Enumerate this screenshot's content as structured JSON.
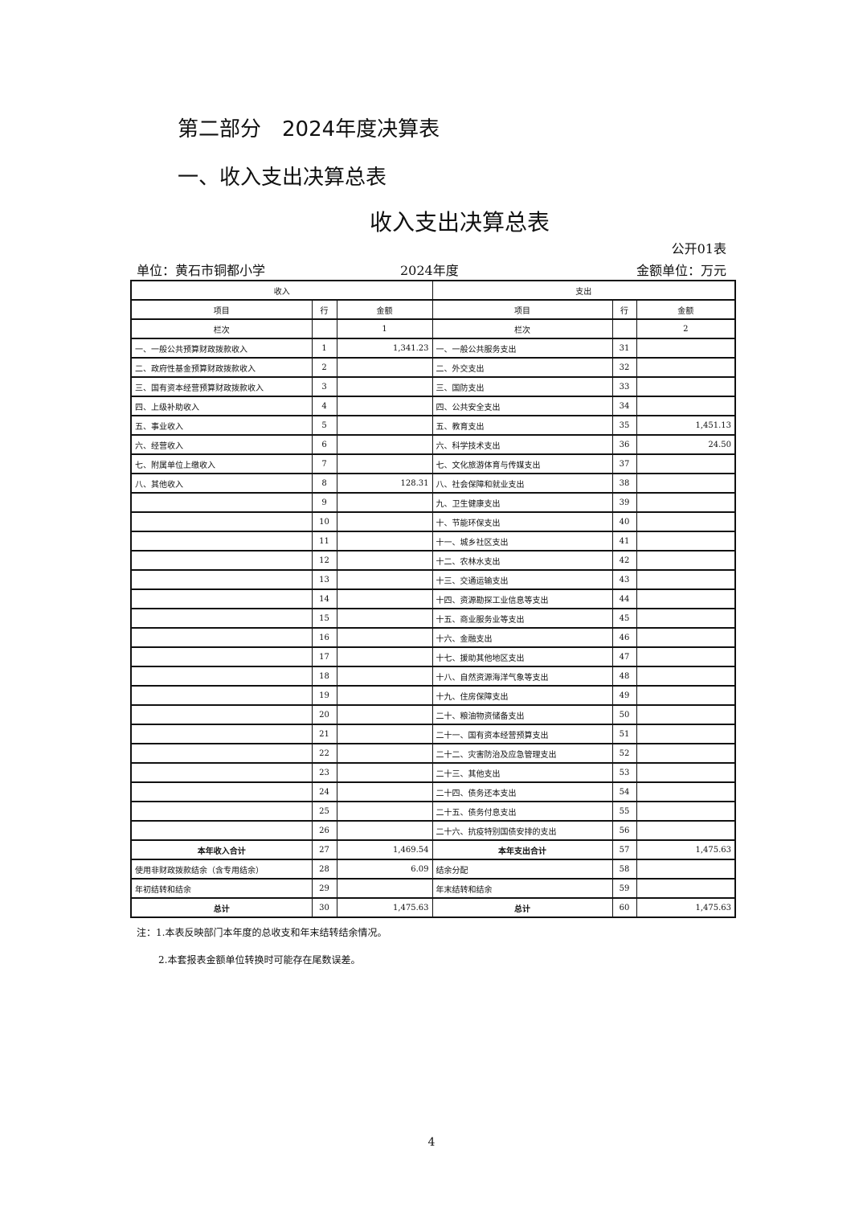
{
  "heading_part": "第二部分　2024年度决算表",
  "heading_section": "一、收入支出决算总表",
  "table_title": "收入支出决算总表",
  "form_no": "公开01表",
  "unit": "单位：黄石市铜都小学",
  "year": "2024年度",
  "money_unit": "金额单位：万元",
  "header": {
    "income": "收入",
    "expense": "支出",
    "item": "项目",
    "line": "行",
    "amount": "金额",
    "col_label": "栏次",
    "col_income": "1",
    "col_expense": "2"
  },
  "rows": [
    [
      "一、一般公共预算财政拨款收入",
      "1",
      "1,341.23",
      "一、一般公共服务支出",
      "31",
      ""
    ],
    [
      "二、政府性基金预算财政拨款收入",
      "2",
      "",
      "二、外交支出",
      "32",
      ""
    ],
    [
      "三、国有资本经营预算财政拨款收入",
      "3",
      "",
      "三、国防支出",
      "33",
      ""
    ],
    [
      "四、上级补助收入",
      "4",
      "",
      "四、公共安全支出",
      "34",
      ""
    ],
    [
      "五、事业收入",
      "5",
      "",
      "五、教育支出",
      "35",
      "1,451.13"
    ],
    [
      "六、经营收入",
      "6",
      "",
      "六、科学技术支出",
      "36",
      "24.50"
    ],
    [
      "七、附属单位上缴收入",
      "7",
      "",
      "七、文化旅游体育与传媒支出",
      "37",
      ""
    ],
    [
      "八、其他收入",
      "8",
      "128.31",
      "八、社会保障和就业支出",
      "38",
      ""
    ],
    [
      "",
      "9",
      "",
      "九、卫生健康支出",
      "39",
      ""
    ],
    [
      "",
      "10",
      "",
      "十、节能环保支出",
      "40",
      ""
    ],
    [
      "",
      "11",
      "",
      "十一、城乡社区支出",
      "41",
      ""
    ],
    [
      "",
      "12",
      "",
      "十二、农林水支出",
      "42",
      ""
    ],
    [
      "",
      "13",
      "",
      "十三、交通运输支出",
      "43",
      ""
    ],
    [
      "",
      "14",
      "",
      "十四、资源勘探工业信息等支出",
      "44",
      ""
    ],
    [
      "",
      "15",
      "",
      "十五、商业服务业等支出",
      "45",
      ""
    ],
    [
      "",
      "16",
      "",
      "十六、金融支出",
      "46",
      ""
    ],
    [
      "",
      "17",
      "",
      "十七、援助其他地区支出",
      "47",
      ""
    ],
    [
      "",
      "18",
      "",
      "十八、自然资源海洋气象等支出",
      "48",
      ""
    ],
    [
      "",
      "19",
      "",
      "十九、住房保障支出",
      "49",
      ""
    ],
    [
      "",
      "20",
      "",
      "二十、粮油物资储备支出",
      "50",
      ""
    ],
    [
      "",
      "21",
      "",
      "二十一、国有资本经营预算支出",
      "51",
      ""
    ],
    [
      "",
      "22",
      "",
      "二十二、灾害防治及应急管理支出",
      "52",
      ""
    ],
    [
      "",
      "23",
      "",
      "二十三、其他支出",
      "53",
      ""
    ],
    [
      "",
      "24",
      "",
      "二十四、债务还本支出",
      "54",
      ""
    ],
    [
      "",
      "25",
      "",
      "二十五、债务付息支出",
      "55",
      ""
    ],
    [
      "",
      "26",
      "",
      "二十六、抗疫特别国债安排的支出",
      "56",
      ""
    ],
    [
      "本年收入合计",
      "27",
      "1,469.54",
      "本年支出合计",
      "57",
      "1,475.63"
    ],
    [
      "使用非财政拨款结余（含专用结余）",
      "28",
      "6.09",
      "结余分配",
      "58",
      ""
    ],
    [
      "年初结转和结余",
      "29",
      "",
      "年末结转和结余",
      "59",
      ""
    ],
    [
      "总计",
      "30",
      "1,475.63",
      "总计",
      "60",
      "1,475.63"
    ]
  ],
  "notes": [
    "注：1.本表反映部门本年度的总收支和年末结转结余情况。",
    "2.本套报表金额单位转换时可能存在尾数误差。"
  ],
  "page_number": "4"
}
